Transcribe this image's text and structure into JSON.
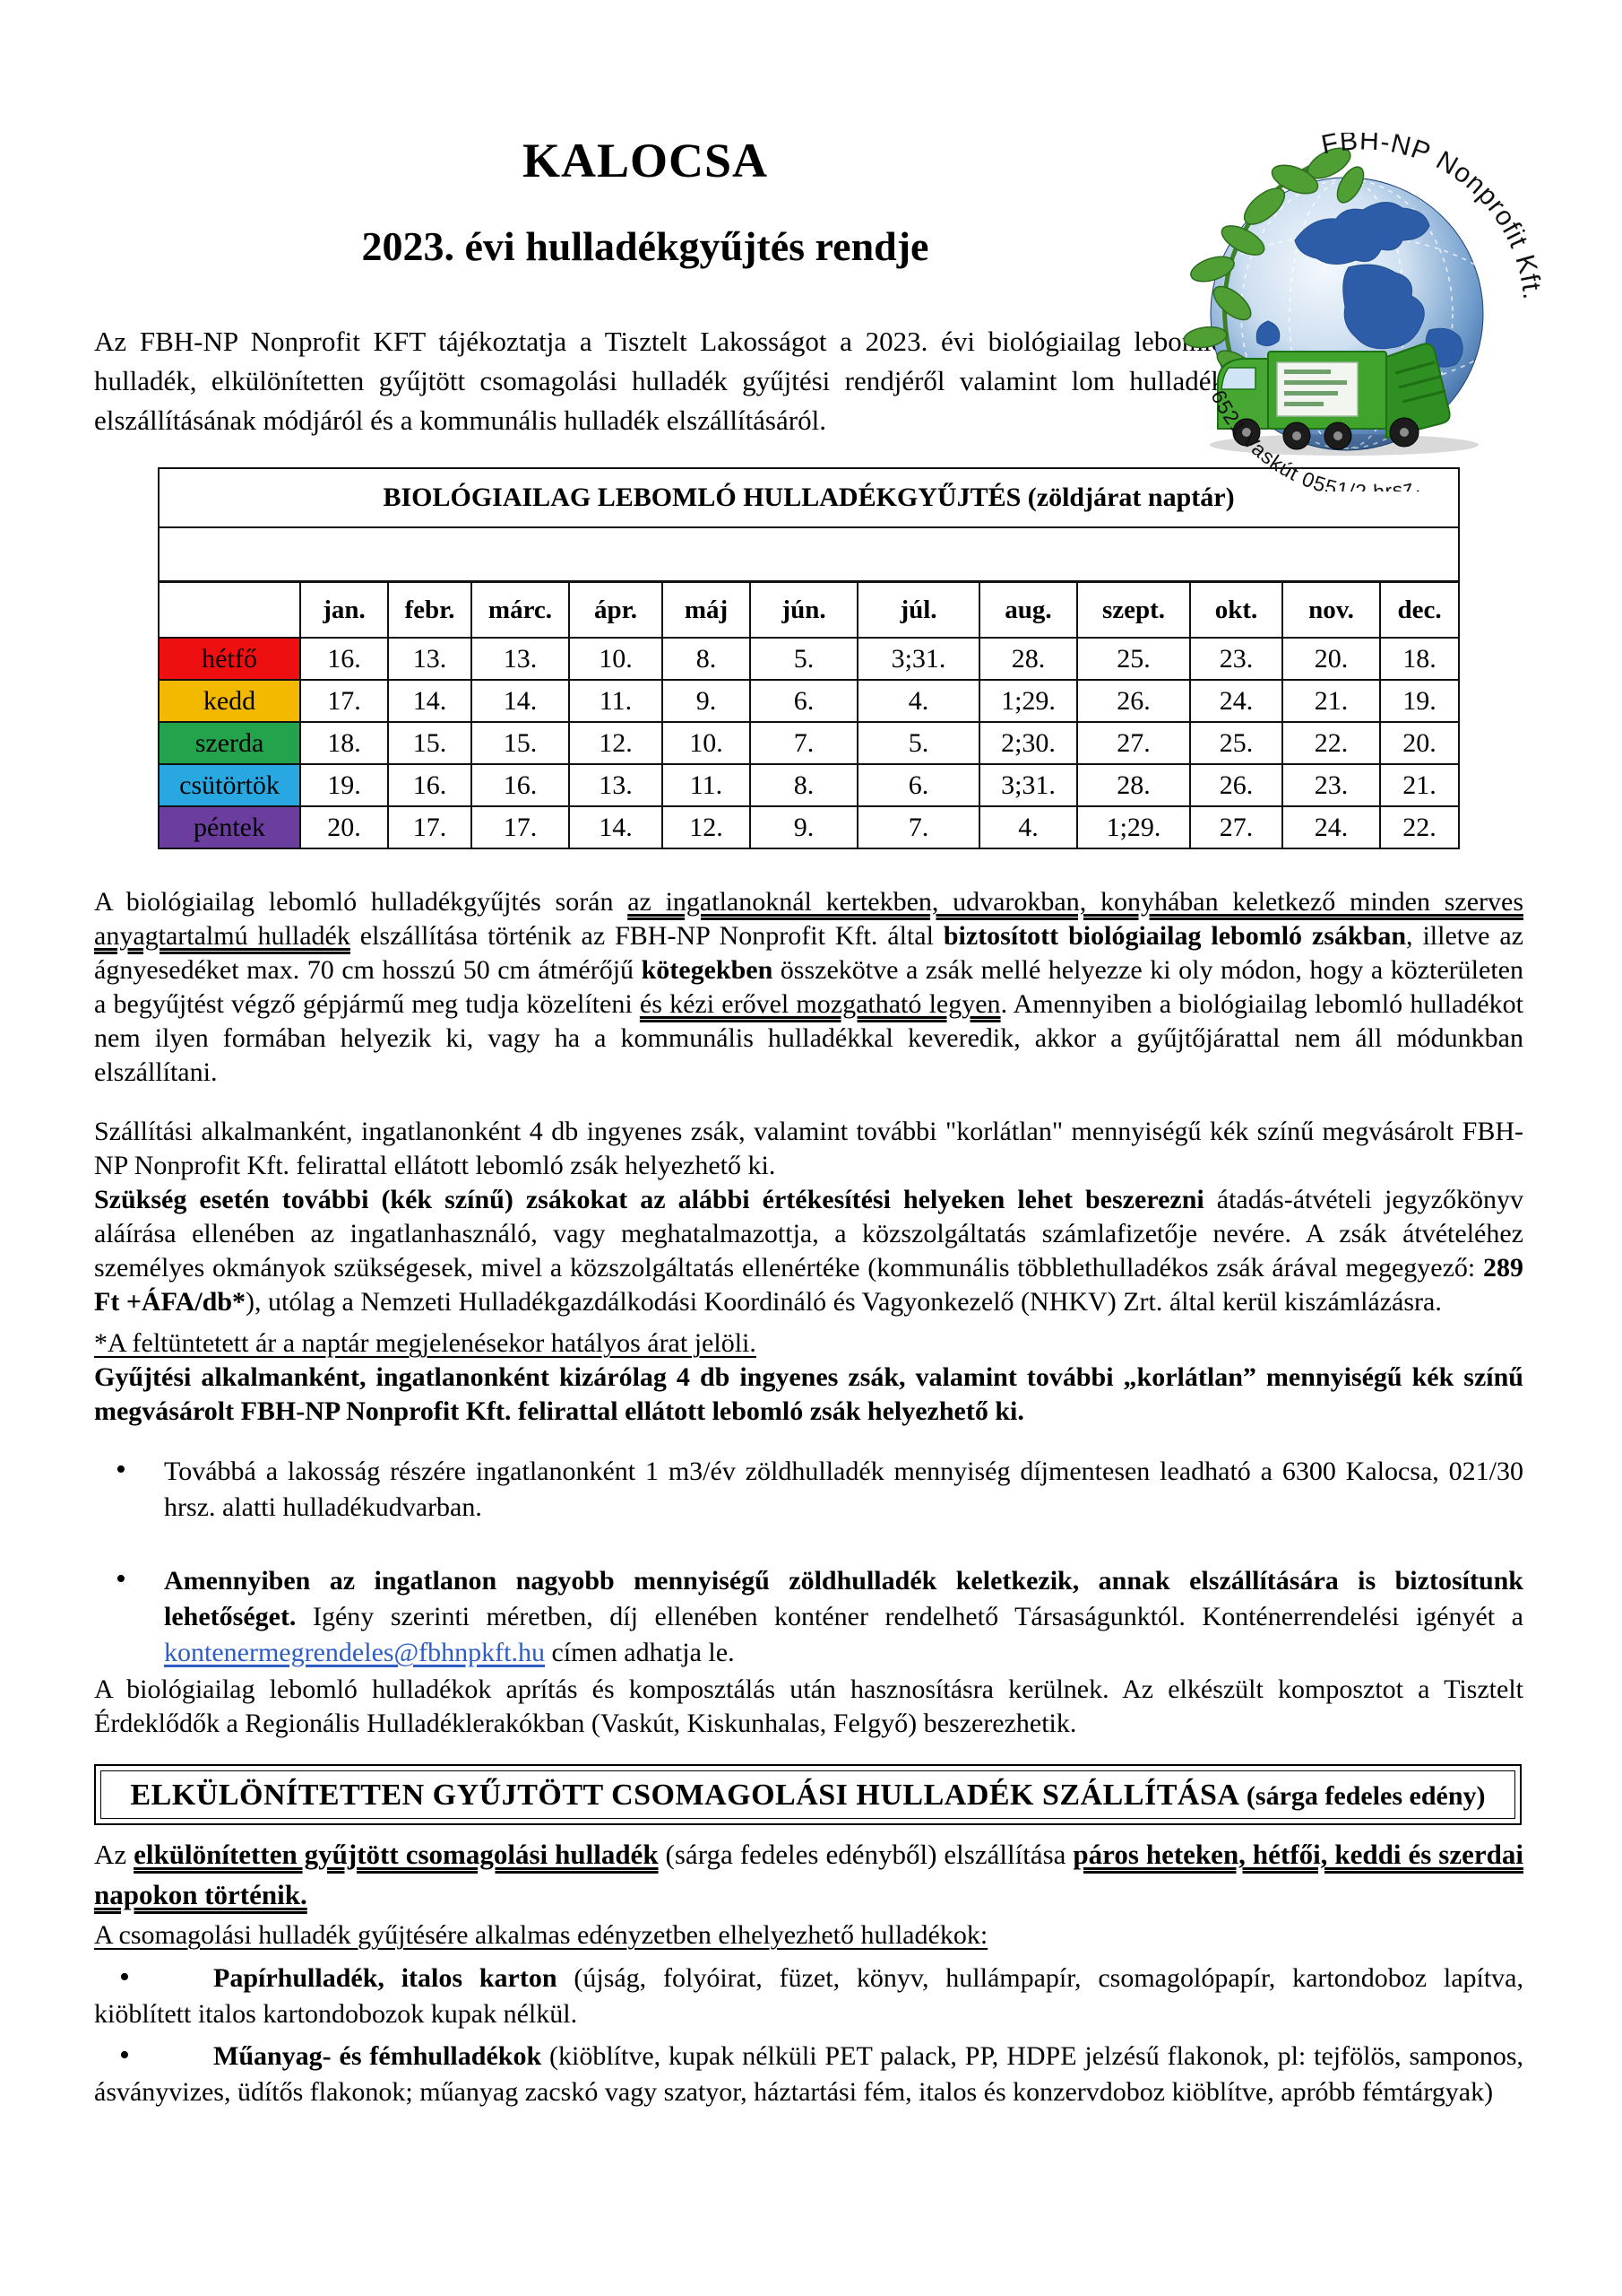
{
  "header": {
    "title": "KALOCSA",
    "subtitle": "2023. évi hulladékgyűjtés rendje"
  },
  "logo": {
    "arc_top": "FBH-NP Nonprofit Kft.",
    "arc_bottom": "6521 Vaskút 0551/2 hrsz."
  },
  "colors": {
    "link": "#2e5cc5",
    "monday": "#ee1010",
    "tuesday": "#f3b800",
    "wednesday": "#22a34c",
    "thursday": "#29a7e0",
    "friday": "#6a3d9f"
  },
  "bullets": {
    "marker": "•"
  },
  "intro": [
    {
      "t": "Az FBH-NP Nonprofit KFT tájékoztatja a Tisztelt Lakosságot a 2023. évi biológiailag lebomló hulladék, elkülönítetten gyűjtött csomagolási hulladék gyűjtési rendjéről valamint lom hulladék elszállításának módjáról és a kommunális hulladék elszállításáról."
    }
  ],
  "calendar": {
    "title": "BIOLÓGIAILAG LEBOMLÓ HULLADÉKGYŰJTÉS (zöldjárat naptár)",
    "months": [
      "jan.",
      "febr.",
      "márc.",
      "ápr.",
      "máj",
      "jún.",
      "júl.",
      "aug.",
      "szept.",
      "okt.",
      "nov.",
      "dec."
    ],
    "rows": [
      {
        "day": "hétfő",
        "color": "#ee1010",
        "values": [
          "16.",
          "13.",
          "13.",
          "10.",
          "8.",
          "5.",
          "3;31.",
          "28.",
          "25.",
          "23.",
          "20.",
          "18."
        ]
      },
      {
        "day": "kedd",
        "color": "#f3b800",
        "values": [
          "17.",
          "14.",
          "14.",
          "11.",
          "9.",
          "6.",
          "4.",
          "1;29.",
          "26.",
          "24.",
          "21.",
          "19."
        ]
      },
      {
        "day": "szerda",
        "color": "#22a34c",
        "values": [
          "18.",
          "15.",
          "15.",
          "12.",
          "10.",
          "7.",
          "5.",
          "2;30.",
          "27.",
          "25.",
          "22.",
          "20."
        ]
      },
      {
        "day": "csütörtök",
        "color": "#29a7e0",
        "values": [
          "19.",
          "16.",
          "16.",
          "13.",
          "11.",
          "8.",
          "6.",
          "3;31.",
          "28.",
          "26.",
          "23.",
          "21."
        ]
      },
      {
        "day": "péntek",
        "color": "#6a3d9f",
        "values": [
          "20.",
          "17.",
          "17.",
          "14.",
          "12.",
          "9.",
          "7.",
          "4.",
          "1;29.",
          "27.",
          "24.",
          "22."
        ]
      }
    ]
  },
  "bio": {
    "para1": [
      {
        "t": "A biológiailag lebomló hulladékgyűjtés során "
      },
      {
        "t": "az ingatlanoknál kertekben, udvarokban, konyhában keletkező minden szerves anyagtartalmú hulladék",
        "u": "d"
      },
      {
        "t": " elszállítása történik az FBH-NP Nonprofit Kft. által "
      },
      {
        "t": "biztosított biológiailag lebomló zsákban",
        "b": true
      },
      {
        "t": ", illetve az ágnyesedéket max. 70 cm hosszú 50 cm átmérőjű "
      },
      {
        "t": "kötegekben",
        "b": true
      },
      {
        "t": " összekötve a zsák mellé helyezze ki oly módon, hogy a közterületen a begyűjtést végző gépjármű meg tudja közelíteni "
      },
      {
        "t": "és kézi erővel mozgatható legyen",
        "u": "d"
      },
      {
        "t": ". Amennyiben a biológiailag lebomló hulladékot nem ilyen formában helyezik ki, vagy ha a kommunális hulladékkal keveredik, akkor a gyűjtőjárattal nem áll módunkban elszállítani."
      }
    ],
    "para2": [
      {
        "t": "Szállítási alkalmanként, ingatlanonként 4 db ingyenes zsák, valamint további \"korlátlan\" mennyiségű kék színű megvásárolt FBH-NP Nonprofit Kft. felirattal ellátott lebomló zsák helyezhető ki."
      }
    ],
    "para3": [
      {
        "t": "Szükség esetén további (kék színű) zsákokat az alábbi értékesítési helyeken lehet beszerezni",
        "b": true
      },
      {
        "t": " átadás-átvételi jegyzőkönyv aláírása ellenében az ingatlanhasználó, vagy meghatalmazottja, a közszolgáltatás számlafizetője nevére. A zsák átvételéhez személyes okmányok szükségesek, mivel a közszolgáltatás ellenértéke (kommunális többlethulladékos zsák árával megegyező: "
      },
      {
        "t": "289 Ft +ÁFA/db*",
        "b": true
      },
      {
        "t": "), utólag a Nemzeti Hulladékgazdálkodási Koordináló és Vagyonkezelő (NHKV) Zrt. által kerül kiszámlázásra."
      }
    ],
    "note": [
      {
        "t": "*A feltüntetett ár a naptár megjelenésekor hatályos árat jelöli.",
        "u": "s"
      }
    ],
    "para4": [
      {
        "t": "Gyűjtési alkalmanként, ingatlanonként kizárólag 4 db ingyenes zsák, valamint további „korlátlan” mennyiségű kék színű megvásárolt FBH-NP Nonprofit Kft. felirattal ellátott lebomló zsák helyezhető ki.",
        "b": true
      }
    ],
    "bullet1": [
      {
        "t": "Továbbá a lakosság részére ingatlanonként 1 m3/év zöldhulladék mennyiség díjmentesen leadható a 6300 Kalocsa, 021/30 hrsz. alatti hulladékudvarban."
      }
    ],
    "bullet2": [
      {
        "t": "Amennyiben az ingatlanon nagyobb mennyiségű zöldhulladék keletkezik, annak elszállítására is biztosítunk lehetőséget.",
        "b": true
      },
      {
        "t": " Igény szerinti méretben, díj ellenében konténer rendelhető Társaságunktól. Konténerrendelési igényét a "
      },
      {
        "t": "kontenermegrendeles@fbhnpkft.hu",
        "link": true
      },
      {
        "t": " címen adhatja le."
      }
    ],
    "para5": [
      {
        "t": "A biológiailag lebomló hulladékok aprítás és komposztálás után hasznosításra kerülnek. Az elkészült komposztot a Tisztelt Érdeklődők a Regionális Hulladéklerakókban (Vaskút, Kiskunhalas, Felgyő) beszerezhetik."
      }
    ]
  },
  "pack": {
    "box_title": "ELKÜLÖNÍTETTEN GYŰJTÖTT CSOMAGOLÁSI HULLADÉK SZÁLLÍTÁSA",
    "box_title_suffix": " (sárga fedeles edény)",
    "para1": [
      {
        "t": "Az "
      },
      {
        "t": "elkülönítetten gyűjtött csomagolási hulladék",
        "b": true,
        "u": "d"
      },
      {
        "t": " (sárga fedeles edényből) elszállítása "
      },
      {
        "t": "páros heteken, hétfői, keddi és szerdai napokon történik.",
        "b": true,
        "u": "d"
      }
    ],
    "para2": [
      {
        "t": "A csomagolási hulladék gyűjtésére alkalmas edényzetben elhelyezhető hulladékok:",
        "u": "s"
      }
    ],
    "bullet1": [
      {
        "t": "Papírhulladék, italos karton",
        "b": true
      },
      {
        "t": " (újság, folyóirat, füzet, könyv, hullámpapír, csomagolópapír, kartondoboz lapítva, kiöblített italos kartondobozok kupak nélkül."
      }
    ],
    "bullet2": [
      {
        "t": "Műanyag- és fémhulladékok",
        "b": true
      },
      {
        "t": " (kiöblítve, kupak nélküli PET palack, PP, HDPE jelzésű flakonok, pl: tejfölös, samponos, ásványvizes, üdítős flakonok; műanyag zacskó vagy szatyor, háztartási fém, italos és konzervdoboz kiöblítve, apróbb fémtárgyak)"
      }
    ]
  }
}
